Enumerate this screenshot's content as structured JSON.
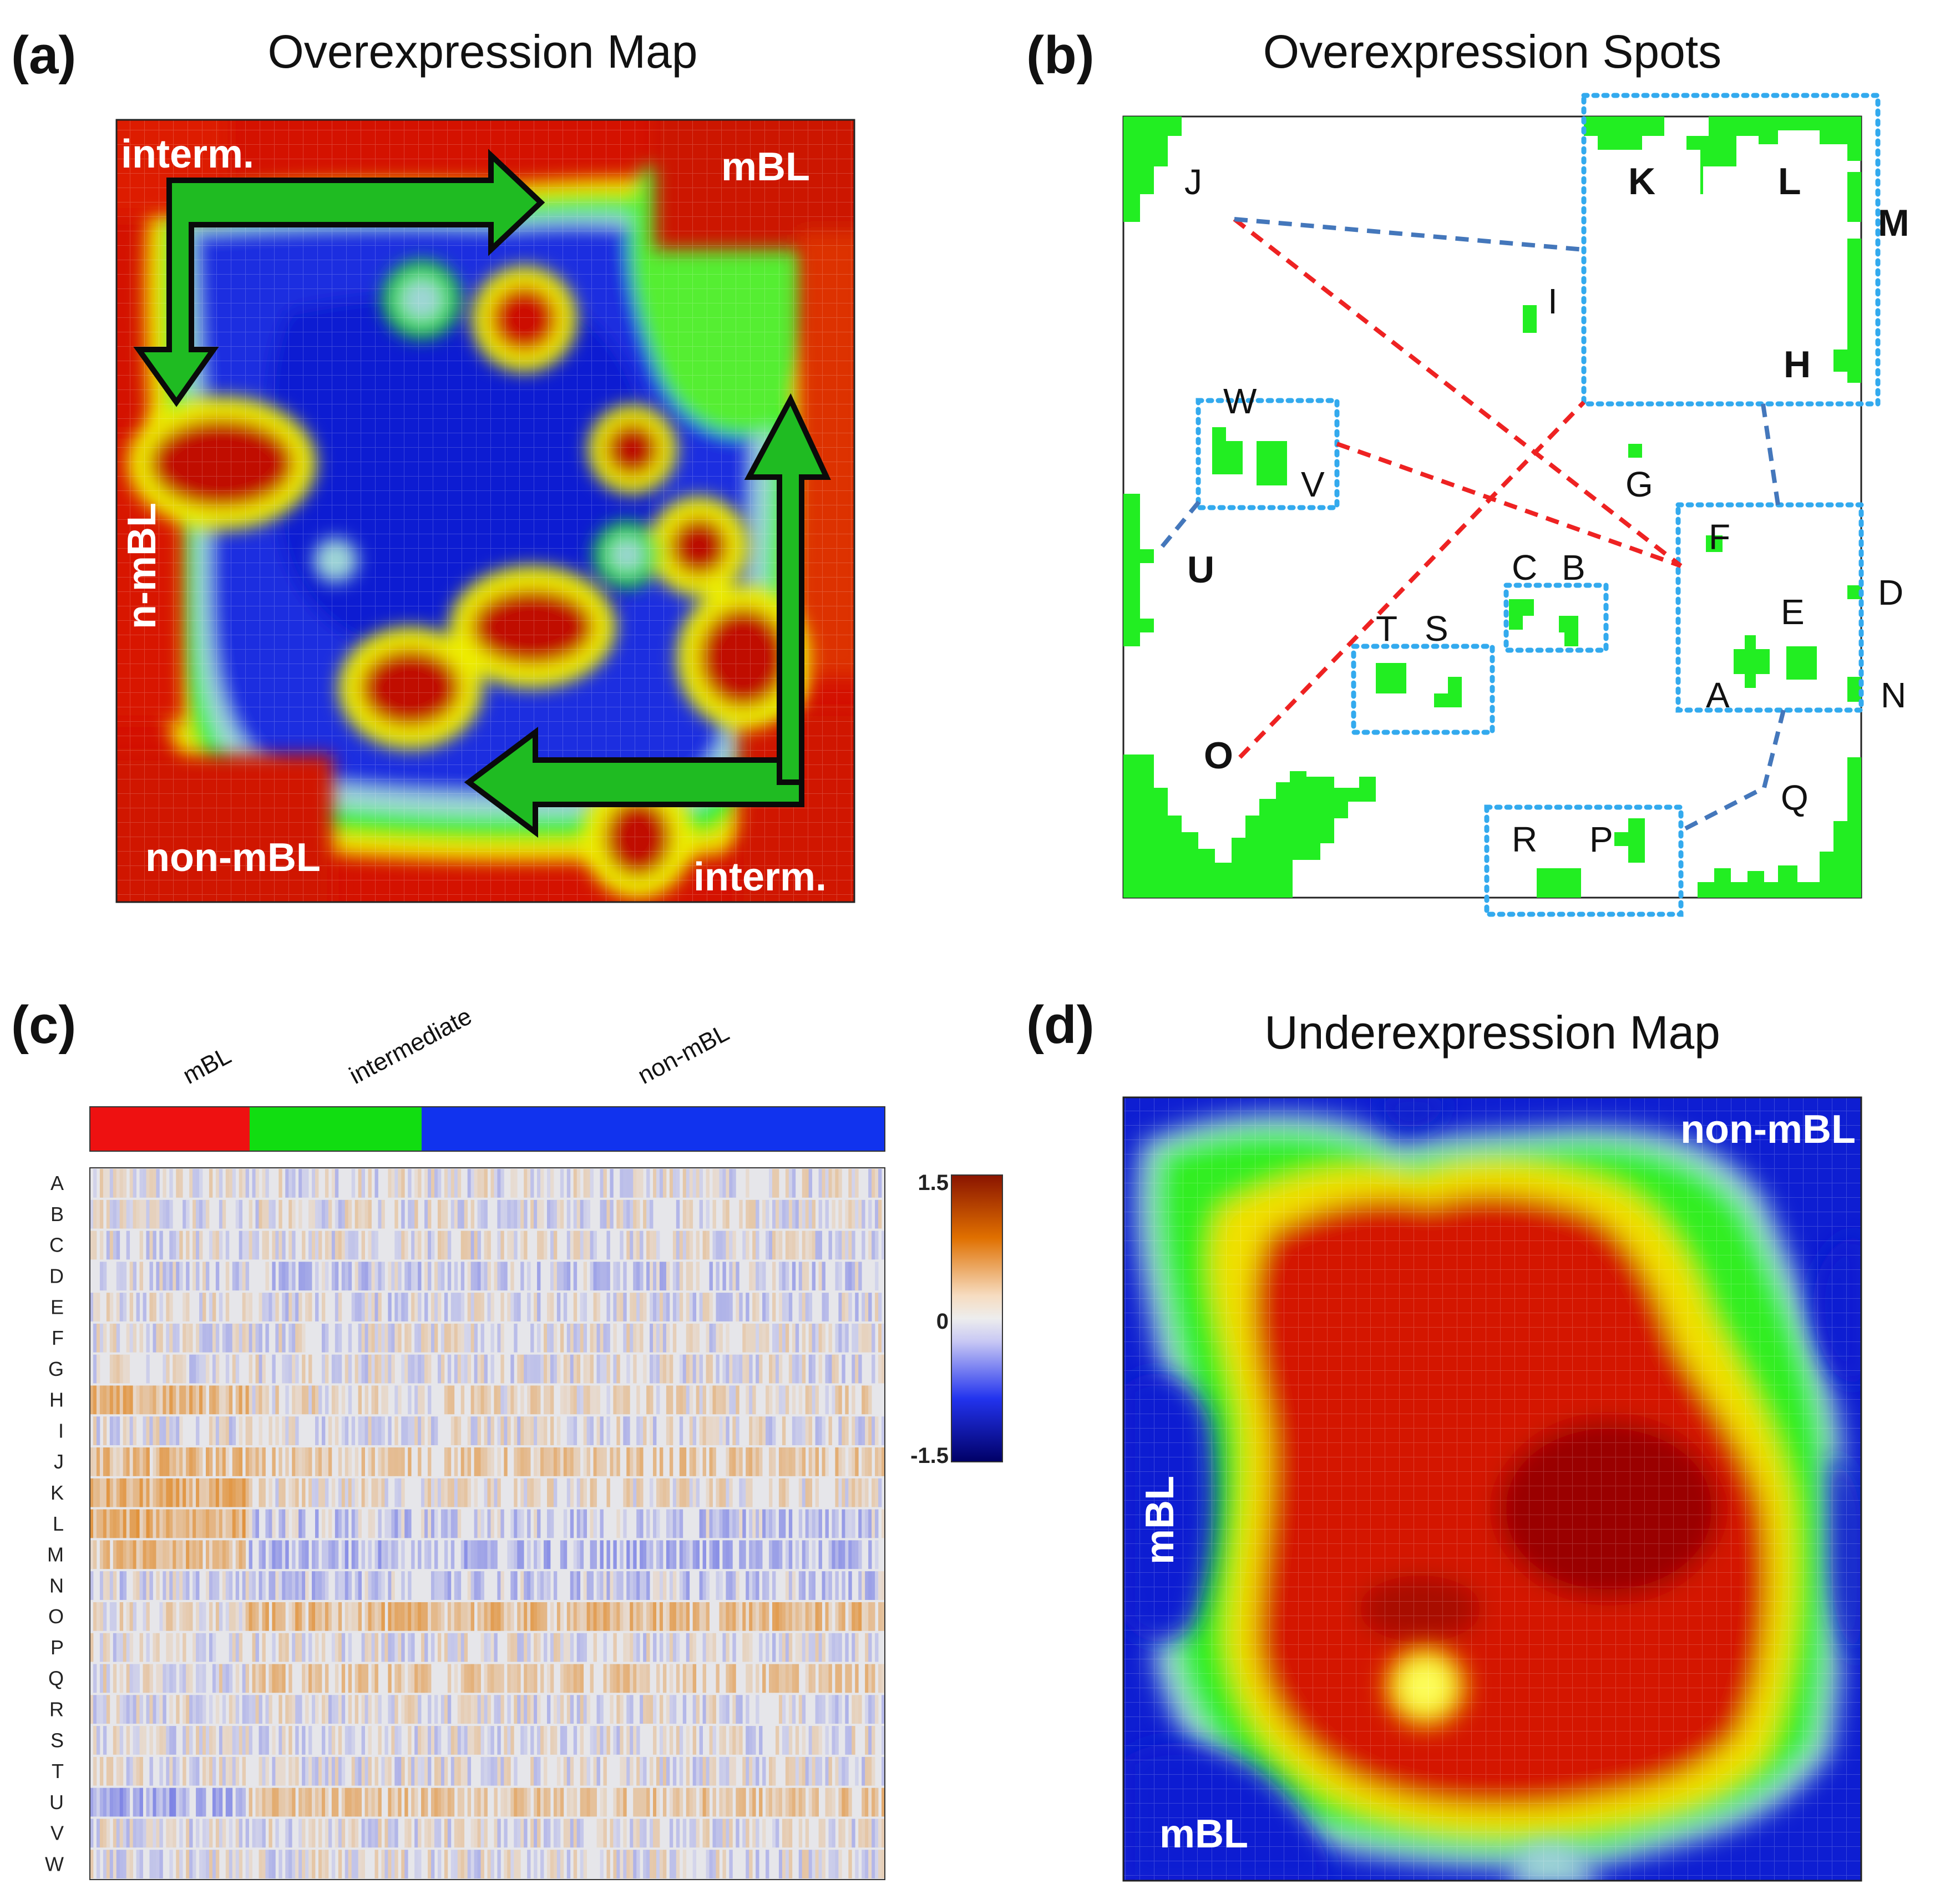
{
  "panels": {
    "a": {
      "letter": "(a)",
      "title": "Overexpression Map",
      "labels": {
        "top_left": "interm.",
        "top_right": "mBL",
        "left": "n-mBL",
        "bottom_left": "non-mBL",
        "bottom_right": "interm."
      }
    },
    "b": {
      "letter": "(b)",
      "title": "Overexpression Spots",
      "spots": [
        "A",
        "B",
        "C",
        "D",
        "E",
        "F",
        "G",
        "H",
        "I",
        "J",
        "K",
        "L",
        "M",
        "N",
        "O",
        "P",
        "Q",
        "R",
        "S",
        "T",
        "U",
        "V",
        "W"
      ]
    },
    "c": {
      "letter": "(c)",
      "groups": [
        {
          "name": "mBL",
          "color": "#ee1111"
        },
        {
          "name": "intermediate",
          "color": "#11dd11"
        },
        {
          "name": "non-mBL",
          "color": "#1133ee"
        }
      ],
      "rows": [
        "A",
        "B",
        "C",
        "D",
        "E",
        "F",
        "G",
        "H",
        "I",
        "J",
        "K",
        "L",
        "M",
        "N",
        "O",
        "P",
        "Q",
        "R",
        "S",
        "T",
        "U",
        "V",
        "W"
      ],
      "colorbar": {
        "max": "1.5",
        "mid": "0",
        "min": "-1.5"
      }
    },
    "d": {
      "letter": "(d)",
      "title": "Underexpression Map",
      "labels": {
        "top_right": "non-mBL",
        "left": "mBL",
        "bottom_left": "mBL"
      }
    }
  },
  "colors": {
    "spot_green": "#22ee22",
    "dotted_box": "#33aaee",
    "red_line": "#ee2222",
    "blue_line": "#4477bb"
  }
}
